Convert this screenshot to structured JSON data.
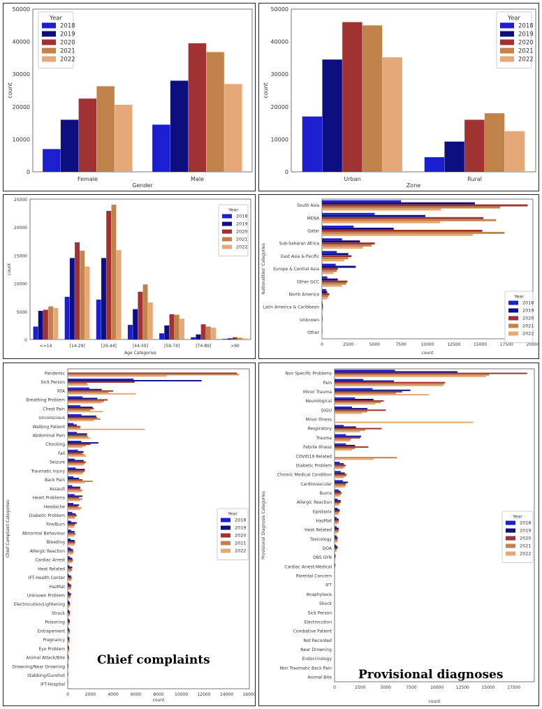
{
  "colors": {
    "2018": "#1b1fcf",
    "2019": "#0d0f80",
    "2020": "#a13232",
    "2021": "#c1834a",
    "2022": "#e6a878"
  },
  "chart_data": [
    {
      "id": "gender",
      "type": "bar",
      "orientation": "vertical",
      "categories": [
        "Female",
        "Male"
      ],
      "series": [
        {
          "name": "2018",
          "values": [
            7000,
            14500
          ]
        },
        {
          "name": "2019",
          "values": [
            16000,
            28000
          ]
        },
        {
          "name": "2020",
          "values": [
            22500,
            39500
          ]
        },
        {
          "name": "2021",
          "values": [
            26300,
            36800
          ]
        },
        {
          "name": "2022",
          "values": [
            20600,
            27000
          ]
        }
      ],
      "xlabel": "Gender",
      "ylabel": "count",
      "ylim": [
        0,
        50000
      ],
      "yticks": [
        "0",
        "10000",
        "20000",
        "30000",
        "40000",
        "50000"
      ],
      "ytick_values": [
        0,
        10000,
        20000,
        30000,
        40000,
        50000
      ],
      "legend_title": "Year",
      "legend": "top-left"
    },
    {
      "id": "zone",
      "type": "bar",
      "orientation": "vertical",
      "categories": [
        "Urban",
        "Rural"
      ],
      "series": [
        {
          "name": "2018",
          "values": [
            17000,
            4500
          ]
        },
        {
          "name": "2019",
          "values": [
            34500,
            9300
          ]
        },
        {
          "name": "2020",
          "values": [
            46000,
            16000
          ]
        },
        {
          "name": "2021",
          "values": [
            45000,
            18000
          ]
        },
        {
          "name": "2022",
          "values": [
            35200,
            12500
          ]
        }
      ],
      "xlabel": "Zone",
      "ylabel": "count",
      "ylim": [
        0,
        50000
      ],
      "yticks": [
        "0",
        "10000",
        "20000",
        "30000",
        "40000",
        "50000"
      ],
      "ytick_values": [
        0,
        10000,
        20000,
        30000,
        40000,
        50000
      ],
      "legend_title": "Year",
      "legend": "top-right"
    },
    {
      "id": "age",
      "type": "bar",
      "orientation": "vertical",
      "categories": [
        "<=14",
        "[14-29]",
        "[29-44]",
        "[44-59]",
        "[59-74]",
        "[74-89]",
        ">90"
      ],
      "series": [
        {
          "name": "2018",
          "values": [
            2300,
            7600,
            7100,
            2600,
            1100,
            400,
            100
          ]
        },
        {
          "name": "2019",
          "values": [
            5100,
            14500,
            14500,
            5400,
            2500,
            900,
            200
          ]
        },
        {
          "name": "2020",
          "values": [
            5300,
            17300,
            22900,
            8500,
            4500,
            2700,
            400
          ]
        },
        {
          "name": "2021",
          "values": [
            5900,
            15800,
            24000,
            9800,
            4400,
            2300,
            300
          ]
        },
        {
          "name": "2022",
          "values": [
            5600,
            13000,
            15900,
            6600,
            3700,
            2100,
            200
          ]
        }
      ],
      "xlabel": "Age Categories",
      "ylabel": "count",
      "ylim": [
        0,
        25000
      ],
      "yticks": [
        "0",
        "5000",
        "10000",
        "15000",
        "20000",
        "25000"
      ],
      "ytick_values": [
        0,
        5000,
        10000,
        15000,
        20000,
        25000
      ],
      "legend_title": "Year",
      "legend": "top-right"
    },
    {
      "id": "nationality",
      "type": "bar",
      "orientation": "horizontal",
      "categories": [
        "South Asia",
        "MENA",
        "Qatar",
        "Sub-Saharan Africa",
        "East Asia & Pacific",
        "Europe & Central Asia",
        "Other GCC",
        "North America",
        "Latin America & Caribbean",
        "Unknown",
        "Other"
      ],
      "series": [
        {
          "name": "2018",
          "values": [
            7500,
            5000,
            3000,
            1900,
            1400,
            1300,
            500,
            400,
            50,
            30,
            20
          ]
        },
        {
          "name": "2019",
          "values": [
            14500,
            9800,
            6800,
            3600,
            2500,
            3200,
            1500,
            500,
            70,
            40,
            30
          ]
        },
        {
          "name": "2020",
          "values": [
            19500,
            15300,
            15200,
            5000,
            2800,
            1500,
            2400,
            700,
            100,
            60,
            40
          ]
        },
        {
          "name": "2021",
          "values": [
            16900,
            16500,
            17300,
            4700,
            2500,
            1400,
            2300,
            600,
            90,
            50,
            30
          ]
        },
        {
          "name": "2022",
          "values": [
            11300,
            11200,
            14300,
            3900,
            2100,
            1100,
            1900,
            500,
            80,
            40,
            30
          ]
        }
      ],
      "xlabel": "count",
      "ylabel": "Nationalities' Categories",
      "xlim": [
        0,
        20000
      ],
      "xticks": [
        "0",
        "2500",
        "5000",
        "7500",
        "10000",
        "12500",
        "15000",
        "17500",
        "20000"
      ],
      "xtick_values": [
        0,
        2500,
        5000,
        7500,
        10000,
        12500,
        15000,
        17500,
        20000
      ],
      "legend_title": "Year",
      "legend": "bottom-right"
    },
    {
      "id": "complaints",
      "type": "bar",
      "orientation": "horizontal",
      "categories": [
        "Pandemic",
        "Sick Person",
        "RTA",
        "Breathing Problem",
        "Chest Pain",
        "Unconscious",
        "Walking Patient",
        "Abdominal Pain",
        "Chocking",
        "Fall",
        "Seizure",
        "Traumatic Injury",
        "Back Pain",
        "Assault",
        "Heart Problems",
        "Headache",
        "Diabetic Problem",
        "Fire/Burn",
        "Abnormal Behaviour",
        "Bleeding",
        "Allergic Reaction",
        "Cardiac Arrest",
        "Heat Related",
        "IFT-Health Center",
        "HazMat",
        "Unknown Problem",
        "Electrocution/Lightening",
        "Strock",
        "Poisoning",
        "Entrapement",
        "Pregnancy",
        "Eye Problem",
        "Animal Attack/Bite",
        "Drowning/Near Drowning",
        "Stabbing/Gunshot",
        "IFT-Hospital"
      ],
      "series": [
        {
          "name": "2018",
          "values": [
            0,
            5800,
            1900,
            1300,
            1100,
            1200,
            500,
            800,
            1200,
            900,
            600,
            700,
            500,
            400,
            600,
            500,
            400,
            300,
            300,
            250,
            250,
            200,
            150,
            100,
            150,
            150,
            120,
            100,
            100,
            80,
            80,
            60,
            40,
            30,
            20,
            10
          ]
        },
        {
          "name": "2019",
          "values": [
            0,
            11800,
            3000,
            2600,
            2200,
            2500,
            800,
            1700,
            2700,
            1400,
            1400,
            1500,
            1000,
            1100,
            1300,
            1000,
            700,
            800,
            600,
            600,
            450,
            400,
            400,
            300,
            300,
            300,
            200,
            200,
            180,
            150,
            150,
            110,
            70,
            50,
            40,
            20
          ]
        },
        {
          "name": "2020",
          "values": [
            14900,
            5900,
            4000,
            3500,
            2300,
            2600,
            1100,
            1700,
            2000,
            1300,
            1600,
            1500,
            1300,
            1100,
            1000,
            900,
            800,
            650,
            650,
            650,
            500,
            450,
            350,
            350,
            300,
            250,
            200,
            200,
            200,
            200,
            150,
            130,
            100,
            60,
            40,
            20
          ]
        },
        {
          "name": "2021",
          "values": [
            15100,
            1700,
            3600,
            3200,
            2000,
            2900,
            1100,
            1800,
            1600,
            1500,
            1500,
            1400,
            2200,
            1300,
            1300,
            1200,
            700,
            600,
            700,
            650,
            500,
            450,
            400,
            350,
            300,
            250,
            200,
            200,
            150,
            200,
            200,
            150,
            100,
            60,
            40,
            20
          ]
        },
        {
          "name": "2022",
          "values": [
            8700,
            1800,
            6000,
            3000,
            3100,
            2300,
            6800,
            2000,
            1300,
            1600,
            1400,
            1300,
            1500,
            1200,
            1100,
            1100,
            600,
            550,
            550,
            600,
            450,
            350,
            300,
            300,
            250,
            200,
            150,
            150,
            150,
            150,
            150,
            120,
            90,
            50,
            30,
            20
          ]
        }
      ],
      "xlabel": "count",
      "ylabel": "Chief Complaint Categories",
      "xlim": [
        0,
        16000
      ],
      "xticks": [
        "0",
        "2000",
        "4000",
        "6000",
        "8000",
        "10000",
        "12000",
        "14000",
        "16000"
      ],
      "xtick_values": [
        0,
        2000,
        4000,
        6000,
        8000,
        10000,
        12000,
        14000,
        16000
      ],
      "legend_title": "Year",
      "legend": "center-right",
      "annotation": "Chief complaints"
    },
    {
      "id": "diagnoses",
      "type": "bar",
      "orientation": "horizontal",
      "categories": [
        "Non Specific Problems",
        "Pain",
        "Minor Trauma",
        "Neurological",
        "GIGU",
        "Minor Illness",
        "Respiratory",
        "Trauma",
        "Febrile Illness",
        "COVID19 Related",
        "Diabetic Problem",
        "Chronic Medical Condition",
        "Cardiovascular",
        "Burns",
        "Allergic Reaction",
        "Epistaxix",
        "HazMat",
        "Heat Related",
        "Toxicology",
        "DOA",
        "OBS GYN",
        "Cardiac Arrest-Medical",
        "Parental Concern",
        "IFT",
        "Anaphylaxis",
        "Shock",
        "Sick Person",
        "Electrocution",
        "Combative Patient",
        "Not Recorded",
        "Near Drowning",
        "Endocrinology",
        "Non Traumatic Back Pain",
        "Animal Bite"
      ],
      "series": [
        {
          "name": "2018",
          "values": [
            5900,
            2800,
            3700,
            2000,
            1700,
            0,
            900,
            1100,
            1100,
            0,
            500,
            600,
            800,
            400,
            300,
            300,
            200,
            200,
            200,
            150,
            60,
            50,
            0,
            0,
            0,
            0,
            0,
            0,
            0,
            0,
            0,
            0,
            0,
            0
          ]
        },
        {
          "name": "2019",
          "values": [
            12000,
            5800,
            7400,
            3800,
            3200,
            0,
            2100,
            2600,
            2000,
            0,
            900,
            1000,
            1300,
            600,
            600,
            500,
            400,
            400,
            300,
            300,
            100,
            80,
            0,
            0,
            0,
            0,
            0,
            0,
            0,
            0,
            0,
            0,
            0,
            0
          ]
        },
        {
          "name": "2020",
          "values": [
            18800,
            10800,
            6600,
            4800,
            5000,
            0,
            4600,
            2500,
            3300,
            0,
            1100,
            1200,
            1100,
            700,
            600,
            500,
            400,
            400,
            300,
            300,
            80,
            60,
            0,
            0,
            0,
            0,
            0,
            0,
            0,
            0,
            0,
            0,
            0,
            0
          ]
        },
        {
          "name": "2021",
          "values": [
            15100,
            10700,
            6000,
            4500,
            3200,
            0,
            3000,
            1600,
            2000,
            6100,
            1000,
            1100,
            1100,
            600,
            500,
            400,
            400,
            400,
            300,
            200,
            80,
            60,
            0,
            0,
            0,
            0,
            0,
            0,
            0,
            0,
            0,
            0,
            0,
            0
          ]
        },
        {
          "name": "2022",
          "values": [
            14800,
            10600,
            9200,
            4000,
            2700,
            13500,
            2500,
            1500,
            1700,
            3800,
            800,
            900,
            1000,
            500,
            400,
            400,
            300,
            300,
            250,
            200,
            60,
            50,
            0,
            0,
            0,
            0,
            0,
            0,
            0,
            0,
            0,
            0,
            0,
            0
          ]
        }
      ],
      "xlabel": "count",
      "ylabel": "Provisional Diagnosis Categories",
      "xlim": [
        0,
        19500
      ],
      "xticks": [
        "0",
        "2500",
        "5000",
        "7500",
        "10000",
        "12500",
        "15000",
        "17500"
      ],
      "xtick_values": [
        0,
        2500,
        5000,
        7500,
        10000,
        12500,
        15000,
        17500
      ],
      "legend_title": "Year",
      "legend": "center-right",
      "annotation": "Provisional diagnoses"
    }
  ]
}
